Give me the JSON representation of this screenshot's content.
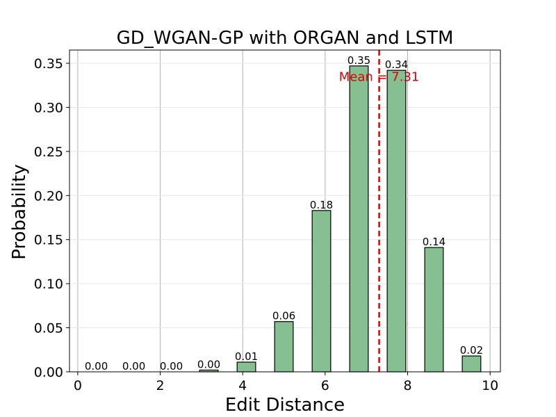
{
  "chart_data": {
    "type": "bar",
    "title": "GD_WGAN-GP with ORGAN and LSTM",
    "xlabel": "Edit Distance",
    "ylabel": "Probability",
    "xlim": [
      -0.2,
      10.25
    ],
    "ylim": [
      0,
      0.365
    ],
    "x_ticks": [
      0,
      2,
      4,
      6,
      8,
      10
    ],
    "y_ticks": [
      0.0,
      0.05,
      0.1,
      0.15,
      0.2,
      0.25,
      0.3,
      0.35
    ],
    "x_tick_labels": [
      "0",
      "2",
      "4",
      "6",
      "8",
      "10"
    ],
    "y_tick_labels": [
      "0.00",
      "0.05",
      "0.10",
      "0.15",
      "0.20",
      "0.25",
      "0.30",
      "0.35"
    ],
    "bar_width": 0.45,
    "bars": [
      {
        "x": 0.45,
        "value": 0.0,
        "label": "0.00"
      },
      {
        "x": 1.36,
        "value": 0.0,
        "label": "0.00"
      },
      {
        "x": 2.27,
        "value": 0.0,
        "label": "0.00"
      },
      {
        "x": 3.18,
        "value": 0.002,
        "label": "0.00"
      },
      {
        "x": 4.09,
        "value": 0.011,
        "label": "0.01"
      },
      {
        "x": 5.0,
        "value": 0.057,
        "label": "0.06"
      },
      {
        "x": 5.91,
        "value": 0.183,
        "label": "0.18"
      },
      {
        "x": 6.82,
        "value": 0.347,
        "label": "0.35"
      },
      {
        "x": 7.73,
        "value": 0.342,
        "label": "0.34"
      },
      {
        "x": 8.64,
        "value": 0.141,
        "label": "0.14"
      },
      {
        "x": 9.55,
        "value": 0.018,
        "label": "0.02"
      }
    ],
    "mean": {
      "value": 7.31,
      "label": "Mean = 7.31"
    },
    "grid": true,
    "colors": {
      "bar_fill": "#86bf91",
      "bar_edge": "#000000",
      "mean_line": "#e00000",
      "grid": "#b0b0b0"
    }
  }
}
